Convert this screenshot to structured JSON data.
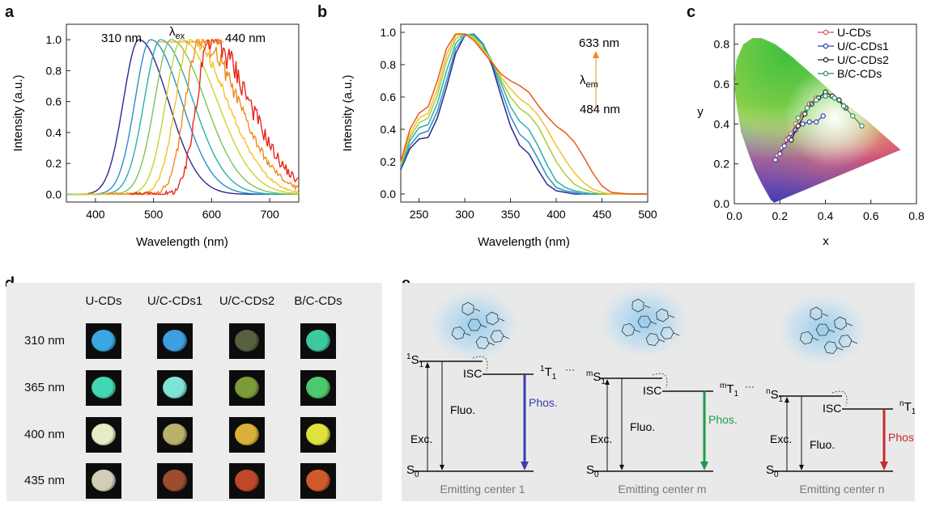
{
  "panels": {
    "a": {
      "letter": "a"
    },
    "b": {
      "letter": "b"
    },
    "c": {
      "letter": "c"
    },
    "d": {
      "letter": "d"
    },
    "e": {
      "letter": "e"
    }
  },
  "chart_data": [
    {
      "panel": "a",
      "type": "line",
      "xlabel": "Wavelength (nm)",
      "ylabel": "Intensity (a.u.)",
      "xlim": [
        350,
        750
      ],
      "ylim": [
        -0.05,
        1.1
      ],
      "xticks": [
        "400",
        "500",
        "600",
        "700"
      ],
      "yticks": [
        "0.0",
        "0.2",
        "0.4",
        "0.6",
        "0.8",
        "1.0"
      ],
      "annotations": {
        "start": "310 nm",
        "lambda": "λ",
        "lambda_sub": "ex",
        "end": "440 nm"
      },
      "series": [
        {
          "color": "#2b2a8c",
          "peak": 475,
          "start": 350,
          "end": 700,
          "width_left": 48,
          "width_right": 90
        },
        {
          "color": "#2d8fc7",
          "peak": 495,
          "start": 350,
          "end": 720,
          "width_left": 48,
          "width_right": 95
        },
        {
          "color": "#2ab0a8",
          "peak": 512,
          "start": 350,
          "end": 740,
          "width_left": 50,
          "width_right": 100
        },
        {
          "color": "#7cc35a",
          "peak": 530,
          "start": 350,
          "end": 750,
          "width_left": 50,
          "width_right": 105
        },
        {
          "color": "#c8d432",
          "peak": 548,
          "start": 355,
          "end": 750,
          "width_left": 48,
          "width_right": 110
        },
        {
          "color": "#f2c228",
          "peak": 563,
          "start": 380,
          "end": 750,
          "width_left": 45,
          "width_right": 115
        },
        {
          "color": "#f08a1e",
          "peak": 578,
          "start": 420,
          "end": 750,
          "width_left": 42,
          "width_right": 120
        },
        {
          "color": "#e8281c",
          "peak": 595,
          "start": 460,
          "end": 750,
          "width_left": 38,
          "width_right": 125
        }
      ]
    },
    {
      "panel": "b",
      "type": "line",
      "xlabel": "Wavelength (nm)",
      "ylabel": "Intensity (a.u.)",
      "xlim": [
        230,
        500
      ],
      "ylim": [
        -0.05,
        1.05
      ],
      "xticks": [
        "250",
        "300",
        "350",
        "400",
        "450",
        "500"
      ],
      "yticks": [
        "0.0",
        "0.2",
        "0.4",
        "0.6",
        "0.8",
        "1.0"
      ],
      "annotations": {
        "top": "633 nm",
        "lambda": "λ",
        "lambda_sub": "em",
        "bottom": "484 nm"
      },
      "series": [
        {
          "color": "#2b2a8c",
          "x": [
            230,
            240,
            250,
            260,
            270,
            280,
            290,
            300,
            310,
            320,
            330,
            340,
            350,
            360,
            370,
            380,
            390,
            400,
            410,
            420,
            430,
            440,
            450,
            460,
            480,
            500
          ],
          "y": [
            0.15,
            0.28,
            0.34,
            0.35,
            0.47,
            0.66,
            0.87,
            0.98,
            0.99,
            0.92,
            0.79,
            0.6,
            0.42,
            0.3,
            0.25,
            0.15,
            0.06,
            0.02,
            0.01,
            0,
            0,
            0,
            0,
            0,
            0,
            0
          ]
        },
        {
          "color": "#2d8fc7",
          "x": [
            230,
            240,
            250,
            260,
            270,
            280,
            290,
            300,
            310,
            320,
            330,
            340,
            350,
            360,
            370,
            380,
            390,
            400,
            410,
            420,
            430,
            440,
            450,
            460,
            480,
            500
          ],
          "y": [
            0.16,
            0.3,
            0.37,
            0.39,
            0.51,
            0.7,
            0.9,
            0.98,
            0.99,
            0.93,
            0.81,
            0.64,
            0.48,
            0.37,
            0.32,
            0.22,
            0.11,
            0.04,
            0.02,
            0.01,
            0,
            0,
            0,
            0,
            0,
            0
          ]
        },
        {
          "color": "#2ab0a8",
          "x": [
            230,
            240,
            250,
            260,
            270,
            280,
            290,
            300,
            310,
            320,
            330,
            340,
            350,
            360,
            370,
            380,
            390,
            400,
            410,
            420,
            430,
            440,
            450,
            460,
            480,
            500
          ],
          "y": [
            0.17,
            0.33,
            0.41,
            0.43,
            0.56,
            0.76,
            0.93,
            0.99,
            0.98,
            0.92,
            0.82,
            0.68,
            0.54,
            0.45,
            0.4,
            0.3,
            0.18,
            0.08,
            0.04,
            0.02,
            0.01,
            0,
            0,
            0,
            0,
            0
          ]
        },
        {
          "color": "#a6cd3c",
          "x": [
            230,
            240,
            250,
            260,
            270,
            280,
            290,
            300,
            310,
            320,
            330,
            340,
            350,
            360,
            370,
            380,
            390,
            400,
            410,
            420,
            430,
            440,
            450,
            460,
            480,
            500
          ],
          "y": [
            0.18,
            0.35,
            0.44,
            0.47,
            0.61,
            0.82,
            0.96,
            0.99,
            0.97,
            0.9,
            0.82,
            0.7,
            0.6,
            0.53,
            0.49,
            0.42,
            0.31,
            0.2,
            0.12,
            0.06,
            0.03,
            0.01,
            0,
            0,
            0,
            0
          ]
        },
        {
          "color": "#f2c228",
          "x": [
            230,
            240,
            250,
            260,
            270,
            280,
            290,
            300,
            310,
            320,
            330,
            340,
            350,
            360,
            370,
            380,
            390,
            400,
            410,
            420,
            430,
            440,
            450,
            460,
            480,
            500
          ],
          "y": [
            0.19,
            0.37,
            0.47,
            0.5,
            0.65,
            0.86,
            0.98,
            0.99,
            0.96,
            0.89,
            0.82,
            0.72,
            0.65,
            0.59,
            0.55,
            0.49,
            0.4,
            0.3,
            0.21,
            0.13,
            0.07,
            0.03,
            0.01,
            0,
            0,
            0
          ]
        },
        {
          "color": "#e8591c",
          "x": [
            230,
            240,
            250,
            260,
            270,
            280,
            290,
            300,
            310,
            320,
            330,
            340,
            350,
            360,
            370,
            380,
            390,
            400,
            410,
            420,
            430,
            440,
            450,
            460,
            480,
            500
          ],
          "y": [
            0.2,
            0.4,
            0.5,
            0.54,
            0.7,
            0.9,
            0.99,
            0.99,
            0.95,
            0.88,
            0.81,
            0.74,
            0.7,
            0.67,
            0.63,
            0.55,
            0.48,
            0.42,
            0.38,
            0.32,
            0.23,
            0.13,
            0.05,
            0.01,
            0,
            0
          ]
        }
      ]
    },
    {
      "panel": "c",
      "type": "scatter",
      "xlabel": "x",
      "ylabel": "y",
      "xlim": [
        0,
        0.8
      ],
      "ylim": [
        0,
        0.9
      ],
      "xticks": [
        "0.0",
        "0.2",
        "0.4",
        "0.6",
        "0.8"
      ],
      "yticks": [
        "0.0",
        "0.2",
        "0.4",
        "0.6",
        "0.8"
      ],
      "legend_position": "top-right",
      "series": [
        {
          "name": "U-CDs",
          "color": "#d9534f",
          "x": [
            0.19,
            0.21,
            0.23,
            0.25,
            0.27,
            0.3,
            0.33,
            0.36
          ],
          "y": [
            0.24,
            0.28,
            0.32,
            0.35,
            0.4,
            0.45,
            0.5,
            0.53
          ]
        },
        {
          "name": "U/C-CDs1",
          "color": "#3b3bb3",
          "x": [
            0.18,
            0.2,
            0.22,
            0.24,
            0.27,
            0.3,
            0.33,
            0.36,
            0.39
          ],
          "y": [
            0.22,
            0.25,
            0.29,
            0.33,
            0.37,
            0.4,
            0.41,
            0.41,
            0.44
          ]
        },
        {
          "name": "U/C-CDs2",
          "color": "#222222",
          "x": [
            0.25,
            0.28,
            0.31,
            0.34,
            0.37,
            0.4,
            0.43,
            0.46,
            0.49
          ],
          "y": [
            0.32,
            0.39,
            0.45,
            0.5,
            0.53,
            0.56,
            0.54,
            0.52,
            0.48
          ]
        },
        {
          "name": "B/C-CDs",
          "color": "#2e8b6b",
          "x": [
            0.28,
            0.32,
            0.36,
            0.4,
            0.44,
            0.48,
            0.52,
            0.56
          ],
          "y": [
            0.43,
            0.48,
            0.52,
            0.54,
            0.53,
            0.49,
            0.44,
            0.39
          ]
        }
      ]
    }
  ],
  "panel_d": {
    "columns": [
      "U-CDs",
      "U/C-CDs1",
      "U/C-CDs2",
      "B/C-CDs"
    ],
    "rows": [
      "310 nm",
      "365 nm",
      "400 nm",
      "435 nm"
    ],
    "colors": [
      [
        "#3aa7e0",
        "#3d9fe0",
        "#55613f",
        "#3cc9a0"
      ],
      [
        "#43d6b3",
        "#7fe3d8",
        "#7c9b3a",
        "#4bc96e"
      ],
      [
        "#e7ecc4",
        "#b9b16a",
        "#d9b03a",
        "#dfe13f"
      ],
      [
        "#d4cdb6",
        "#9c4d2e",
        "#c1472b",
        "#d15a2b"
      ]
    ]
  },
  "panel_e": {
    "centers": [
      {
        "s": "S",
        "s_pre": "1",
        "t": "T",
        "t_pre": "1",
        "phos_color": "#3b3bb3",
        "caption": "Emitting center 1"
      },
      {
        "s": "S",
        "s_pre": "m",
        "t": "T",
        "t_pre": "m",
        "phos_color": "#1f9a4a",
        "caption": "Emitting center m"
      },
      {
        "s": "S",
        "s_pre": "n",
        "t": "T",
        "t_pre": "n",
        "phos_color": "#c8282e",
        "caption": "Emitting center n"
      }
    ],
    "labels": {
      "isc": "ISC",
      "fluo": "Fluo.",
      "exc": "Exc.",
      "phos": "Phos.",
      "s0": "S",
      "s0_sub": "0",
      "s1_sub": "1",
      "t1_sub": "1",
      "dots": "···"
    }
  }
}
